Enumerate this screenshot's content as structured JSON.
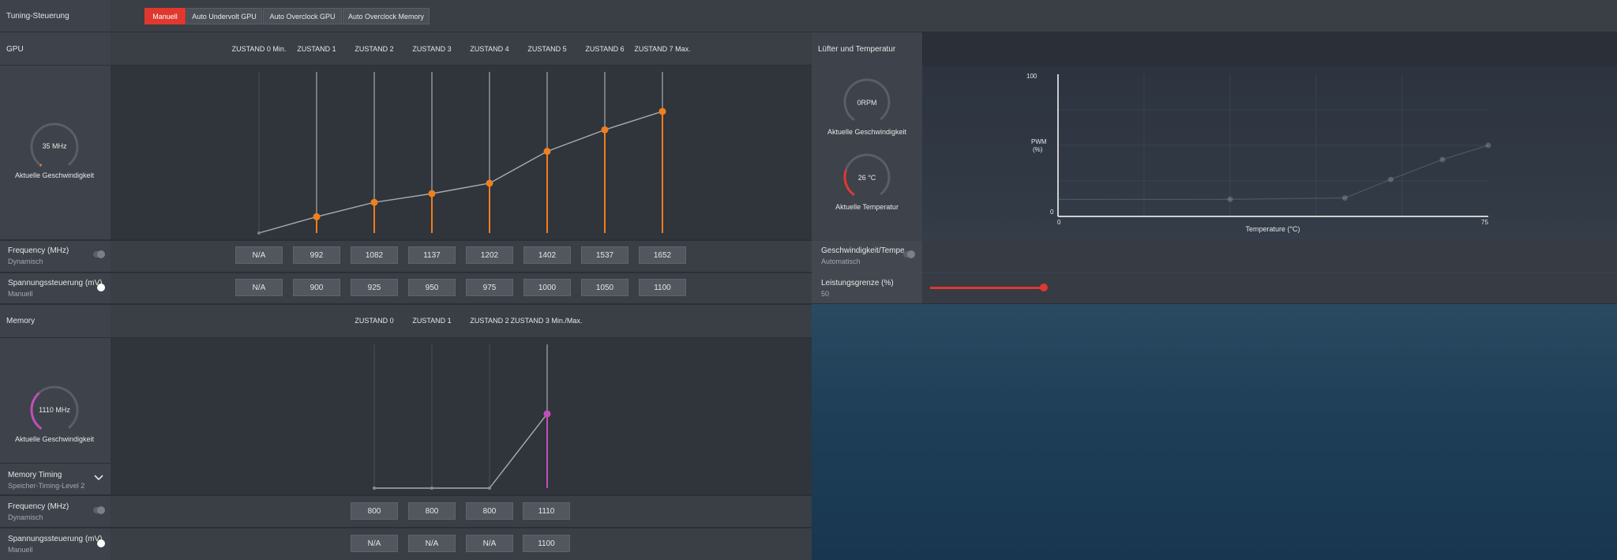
{
  "tuning": {
    "label": "Tuning-Steuerung",
    "buttons": [
      "Manuell",
      "Auto Undervolt GPU",
      "Auto Overclock GPU",
      "Auto Overclock Memory"
    ]
  },
  "gpu": {
    "title": "GPU",
    "states": [
      "ZUSTAND 0 Min.",
      "ZUSTAND 1",
      "ZUSTAND 2",
      "ZUSTAND 3",
      "ZUSTAND 4",
      "ZUSTAND 5",
      "ZUSTAND 6",
      "ZUSTAND 7 Max."
    ],
    "gauge_value": "35 MHz",
    "gauge_caption": "Aktuelle Geschwindigkeit",
    "frequency_label": "Frequency (MHz)",
    "frequency_sub": "Dynamisch",
    "frequency_values": [
      "N/A",
      "992",
      "1082",
      "1137",
      "1202",
      "1402",
      "1537",
      "1652"
    ],
    "voltage_label": "Spannungssteuerung (mV)",
    "voltage_sub": "Manuell",
    "voltage_values": [
      "N/A",
      "900",
      "925",
      "950",
      "975",
      "1000",
      "1050",
      "1100"
    ],
    "accent": "#f07f1e"
  },
  "fan": {
    "title": "Lüfter und Temperatur",
    "speed_value": "0RPM",
    "speed_caption": "Aktuelle Geschwindigkeit",
    "temp_value": "26 °C",
    "temp_caption": "Aktuelle Temperatur",
    "y_label_1": "PWM",
    "y_label_2": "(%)",
    "x_label": "Temperature (°C)",
    "y_max": "100",
    "y_min": "0",
    "x_min": "0",
    "x_max": "75",
    "speed_temp_label": "Geschwindigkeit/Tempe...",
    "speed_temp_sub": "Automatisch",
    "power_label": "Leistungsgrenze (%)",
    "power_value": "50",
    "power_level": 50
  },
  "memory": {
    "title": "Memory",
    "states": [
      "ZUSTAND 0",
      "ZUSTAND 1",
      "ZUSTAND 2",
      "ZUSTAND 3 Min./Max."
    ],
    "gauge_value": "1110 MHz",
    "gauge_caption": "Aktuelle Geschwindigkeit",
    "timing_label": "Memory Timing",
    "timing_sub": "Speicher-Timing-Level 2",
    "frequency_label": "Frequency (MHz)",
    "frequency_sub": "Dynamisch",
    "frequency_values": [
      "800",
      "800",
      "800",
      "1110"
    ],
    "voltage_label": "Spannungssteuerung (mV)",
    "voltage_sub": "Manuell",
    "voltage_values": [
      "N/A",
      "N/A",
      "N/A",
      "1100"
    ],
    "accent": "#c04fb8"
  },
  "chart_data": [
    {
      "type": "line",
      "title": "",
      "categories": [
        "ZUSTAND 0 Min.",
        "ZUSTAND 1",
        "ZUSTAND 2",
        "ZUSTAND 3",
        "ZUSTAND 4",
        "ZUSTAND 5",
        "ZUSTAND 6",
        "ZUSTAND 7 Max."
      ],
      "series": [
        {
          "name": "",
          "values": [
            null,
            992,
            1082,
            1137,
            1202,
            1402,
            1537,
            1652
          ]
        }
      ]
    },
    {
      "type": "line",
      "title": "",
      "xlabel": "Temperature (°C)",
      "ylabel": "PWM (%)",
      "xlim": [
        0,
        75
      ],
      "ylim": [
        0,
        100
      ],
      "series": [
        {
          "name": "",
          "x": [
            30,
            50,
            58,
            67,
            75
          ],
          "y": [
            12,
            13,
            26,
            40,
            50
          ]
        }
      ]
    },
    {
      "type": "line",
      "title": "",
      "categories": [
        "ZUSTAND 0",
        "ZUSTAND 1",
        "ZUSTAND 2",
        "ZUSTAND 3 Min./Max."
      ],
      "series": [
        {
          "name": "",
          "values": [
            800,
            800,
            800,
            1110
          ]
        }
      ]
    }
  ]
}
